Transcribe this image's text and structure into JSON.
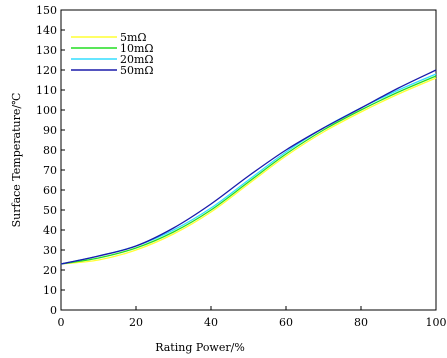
{
  "chart_data": {
    "type": "line",
    "xlabel": "Rating Power/%",
    "ylabel": "Surface Temperature/℃",
    "xlim": [
      0,
      100
    ],
    "ylim": [
      0,
      150
    ],
    "xticks": [
      "0",
      "20",
      "40",
      "60",
      "80",
      "100"
    ],
    "yticks": [
      "0",
      "10",
      "20",
      "30",
      "40",
      "50",
      "60",
      "70",
      "80",
      "90",
      "100",
      "110",
      "120",
      "130",
      "140",
      "150"
    ],
    "grid": false,
    "legend": {
      "placement": "top-left"
    },
    "series": [
      {
        "name": "5mΩ",
        "color": "#ffff33",
        "x": [
          0,
          10,
          20,
          30,
          40,
          50,
          60,
          70,
          80,
          90,
          100
        ],
        "y": [
          23,
          25,
          30,
          38,
          49,
          63,
          77,
          89,
          99,
          108,
          116
        ]
      },
      {
        "name": "10mΩ",
        "color": "#22dd22",
        "x": [
          0,
          10,
          20,
          30,
          40,
          50,
          60,
          70,
          80,
          90,
          100
        ],
        "y": [
          23,
          26,
          31,
          39,
          50,
          64,
          78,
          90,
          100,
          109,
          117
        ]
      },
      {
        "name": "20mΩ",
        "color": "#33ddff",
        "x": [
          0,
          10,
          20,
          30,
          40,
          50,
          60,
          70,
          80,
          90,
          100
        ],
        "y": [
          23,
          27,
          32,
          40,
          51,
          65,
          79,
          91,
          101,
          110,
          118
        ]
      },
      {
        "name": "50mΩ",
        "color": "#1a1aaa",
        "x": [
          0,
          10,
          20,
          30,
          40,
          50,
          60,
          70,
          80,
          90,
          100
        ],
        "y": [
          23,
          27,
          32,
          41,
          53,
          67,
          80,
          91,
          101,
          111,
          120
        ]
      }
    ]
  }
}
